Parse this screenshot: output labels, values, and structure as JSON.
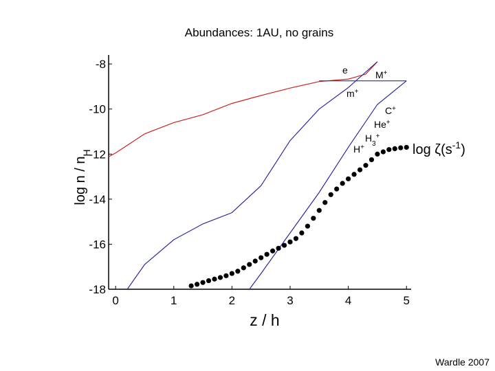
{
  "chart_data": {
    "type": "line",
    "title": "Abundances: 1AU, no grains",
    "xlabel": "z / h",
    "ylabel_parts": [
      {
        "text": "log n / n"
      },
      {
        "text": "H",
        "style": "sub"
      }
    ],
    "footer": "Wardle 2007",
    "xlim": [
      -0.12,
      5.08
    ],
    "ylim": [
      -18,
      -7.6
    ],
    "xticks": [
      0,
      1,
      2,
      3,
      4,
      5
    ],
    "yticks": [
      -8,
      -10,
      -12,
      -14,
      -16,
      -18
    ],
    "series": [
      {
        "color": "#cc2222",
        "x": [
          -0.12,
          0,
          0.5,
          1,
          1.5,
          2,
          2.5,
          3,
          3.5,
          4,
          4.3,
          4.5
        ],
        "values": [
          -12.12,
          -11.95,
          -11.1,
          -10.6,
          -10.25,
          -9.75,
          -9.4,
          -9.07,
          -8.78,
          -8.67,
          -8.45,
          -7.9
        ]
      },
      {
        "color": "#2a2aa0",
        "x": [
          0.2,
          0.5,
          1,
          1.5,
          2,
          2.5,
          3,
          3.5,
          4,
          4.5
        ],
        "values": [
          -18,
          -16.9,
          -15.8,
          -15.1,
          -14.6,
          -13.4,
          -11.4,
          -10.0,
          -9.05,
          -7.9
        ]
      },
      {
        "color": "#2a2aa0",
        "x": [
          3.5,
          5
        ],
        "values": [
          -8.75,
          -8.75
        ]
      },
      {
        "color": "#2a2aa0",
        "x": [
          2.3,
          2.5,
          3,
          3.5,
          4,
          4.5,
          5
        ],
        "values": [
          -18,
          -17.3,
          -15.5,
          -13.7,
          -11.7,
          -9.8,
          -8.75
        ]
      },
      {
        "color": "#000000",
        "marker": "dot",
        "x": [
          1.3,
          1.4,
          1.5,
          1.6,
          1.7,
          1.8,
          1.9,
          2.0,
          2.1,
          2.2,
          2.3,
          2.4,
          2.5,
          2.6,
          2.7,
          2.8,
          2.9,
          3.0,
          3.1,
          3.2,
          3.3,
          3.4,
          3.5,
          3.6,
          3.7,
          3.8,
          3.9,
          4.0,
          4.1,
          4.2,
          4.3,
          4.4,
          4.5,
          4.6,
          4.7,
          4.8,
          4.9,
          5.0
        ],
        "values": [
          -17.85,
          -17.78,
          -17.7,
          -17.62,
          -17.55,
          -17.48,
          -17.4,
          -17.3,
          -17.2,
          -17.05,
          -16.9,
          -16.75,
          -16.6,
          -16.45,
          -16.3,
          -16.18,
          -16.05,
          -15.9,
          -15.75,
          -15.5,
          -15.2,
          -14.85,
          -14.5,
          -14.15,
          -13.8,
          -13.55,
          -13.3,
          -13.1,
          -12.9,
          -12.7,
          -12.5,
          -12.25,
          -12.0,
          -11.9,
          -11.8,
          -11.76,
          -11.72,
          -11.7
        ]
      }
    ],
    "annotations": [
      {
        "parts": [
          {
            "text": "e"
          }
        ]
      },
      {
        "parts": [
          {
            "text": "M"
          },
          {
            "text": "+",
            "style": "sup"
          }
        ]
      },
      {
        "parts": [
          {
            "text": "m"
          },
          {
            "text": "+",
            "style": "sup"
          }
        ]
      },
      {
        "parts": [
          {
            "text": "C"
          },
          {
            "text": "+",
            "style": "sup"
          }
        ]
      },
      {
        "parts": [
          {
            "text": "He"
          },
          {
            "text": "+",
            "style": "sup"
          }
        ]
      },
      {
        "parts": [
          {
            "text": "H"
          },
          {
            "text": "3",
            "style": "sub"
          },
          {
            "text": "+",
            "style": "sup"
          }
        ]
      },
      {
        "parts": [
          {
            "text": "H"
          },
          {
            "text": "+",
            "style": "sup"
          }
        ]
      },
      {
        "parts": [
          {
            "text": "log ζ(s"
          },
          {
            "text": "-1",
            "style": "sup"
          },
          {
            "text": ")"
          }
        ]
      }
    ]
  }
}
